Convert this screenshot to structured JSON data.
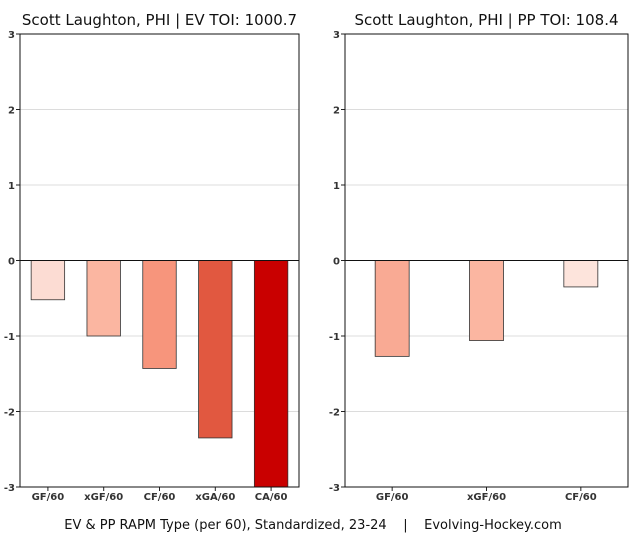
{
  "chart_data": [
    {
      "type": "bar",
      "title": "Scott Laughton, PHI  |  EV TOI: 1000.7",
      "categories": [
        "GF/60",
        "xGF/60",
        "CF/60",
        "xGA/60",
        "CA/60"
      ],
      "values": [
        -0.52,
        -1.0,
        -1.43,
        -2.35,
        -3.0
      ],
      "colors": [
        "#fcdcd3",
        "#fbb6a1",
        "#f7957c",
        "#e15840",
        "#c90000"
      ],
      "ylim": [
        -3,
        3
      ],
      "yticks": [
        -3,
        -2,
        -1,
        0,
        1,
        2,
        3
      ],
      "grid": true
    },
    {
      "type": "bar",
      "title": "Scott Laughton, PHI  |  PP TOI: 108.4",
      "categories": [
        "GF/60",
        "xGF/60",
        "CF/60"
      ],
      "values": [
        -1.27,
        -1.06,
        -0.35
      ],
      "colors": [
        "#f9aa94",
        "#fbb6a1",
        "#fde4dc"
      ],
      "ylim": [
        -3,
        3
      ],
      "yticks": [
        -3,
        -2,
        -1,
        0,
        1,
        2,
        3
      ],
      "grid": true
    }
  ],
  "footer": "EV & PP RAPM Type (per 60), Standardized, 23-24    |    Evolving-Hockey.com"
}
